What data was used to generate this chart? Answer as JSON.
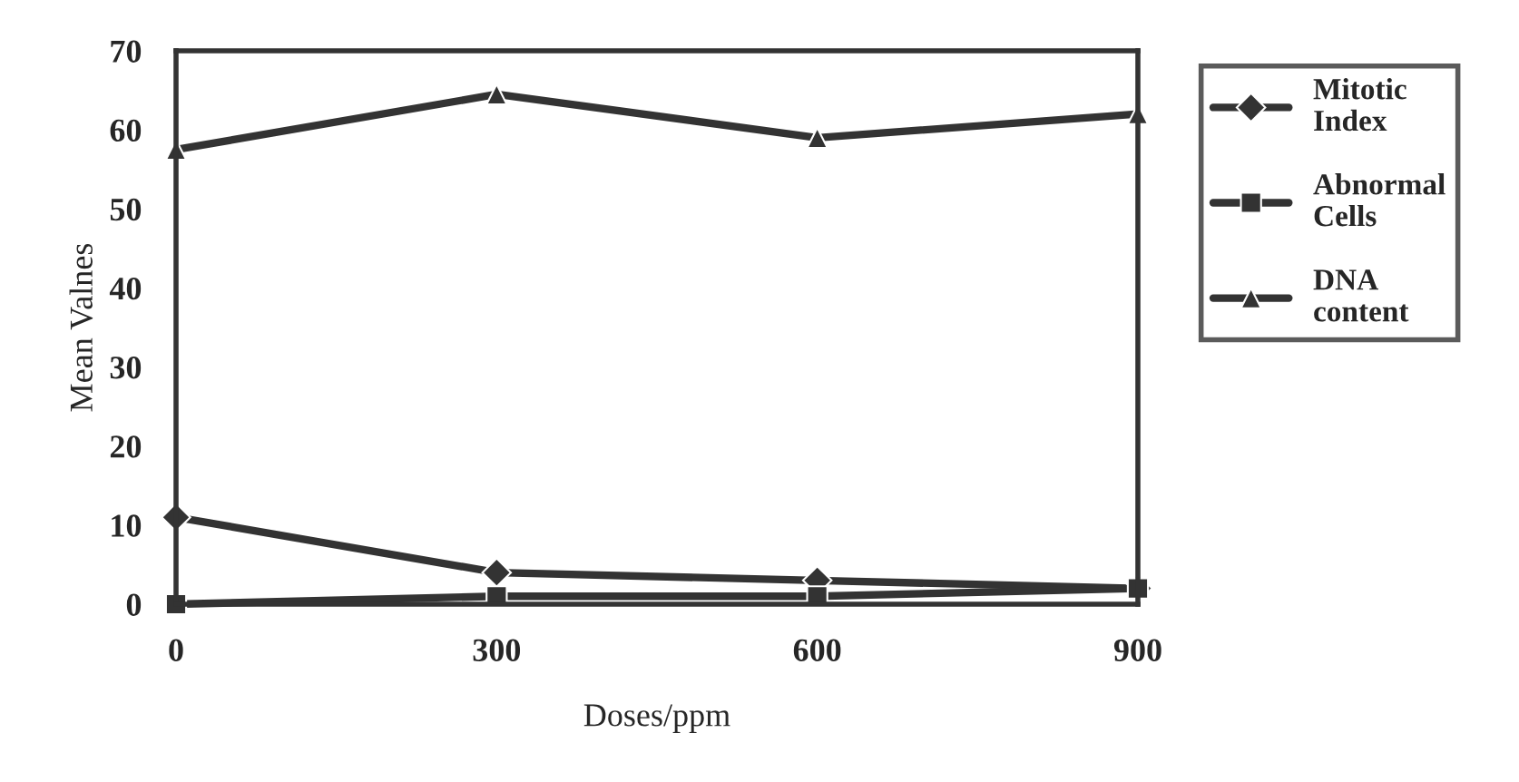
{
  "chart_data": {
    "type": "line",
    "xlabel": "Doses/ppm",
    "ylabel": "Mean Valnes",
    "x": [
      0,
      300,
      600,
      900
    ],
    "series": [
      {
        "name": "Mitotic Index",
        "color": "#333333",
        "marker": "diamond",
        "values": [
          11,
          4,
          3,
          2
        ]
      },
      {
        "name": "Abnormal Cells",
        "color": "#333333",
        "marker": "square",
        "values": [
          0,
          1,
          1,
          2
        ]
      },
      {
        "name": "DNA content",
        "color": "#333333",
        "marker": "triangle",
        "values": [
          57.5,
          64.5,
          59,
          62
        ]
      }
    ],
    "xlim": [
      0,
      900
    ],
    "xticks": [
      0,
      300,
      600,
      900
    ],
    "ylim": [
      0,
      70
    ],
    "yticks": [
      0,
      10,
      20,
      30,
      40,
      50,
      60,
      70
    ],
    "grid": false,
    "legend": "right",
    "line_style": "solid"
  }
}
